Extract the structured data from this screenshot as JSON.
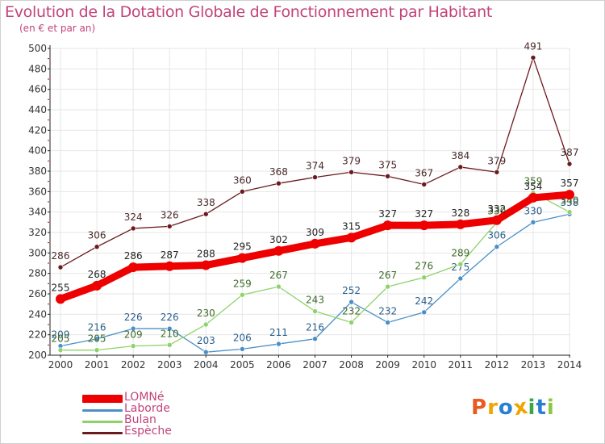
{
  "title": "Evolution de la Dotation Globale de Fonctionnement par Habitant",
  "subtitle": "(en € et par an)",
  "logo": {
    "text": "Proxiti",
    "colors": [
      "#e85a1f",
      "#f0a500",
      "#2a7fd4",
      "#f0a500",
      "#3aa845",
      "#2a7fd4",
      "#8dc63f"
    ]
  },
  "colors": {
    "title": "#c2437a",
    "axis": "#222222",
    "grid": "#e6e6e6",
    "tick_red": "#cc0000"
  },
  "chart_data": {
    "type": "line",
    "title": "Evolution de la Dotation Globale de Fonctionnement par Habitant",
    "subtitle": "(en € et par an)",
    "x": [
      2000,
      2001,
      2002,
      2003,
      2004,
      2005,
      2006,
      2007,
      2008,
      2009,
      2010,
      2011,
      2012,
      2013,
      2014
    ],
    "ylim": [
      200,
      500
    ],
    "yticks": [
      200,
      220,
      240,
      260,
      280,
      300,
      320,
      340,
      360,
      380,
      400,
      420,
      440,
      460,
      480,
      500
    ],
    "grid": true,
    "legend_position": "bottom-left",
    "series": [
      {
        "name": "Espèche",
        "color": "#6b1a1e",
        "label_color": "#4a2a2a",
        "width": 1.3,
        "marker": 3,
        "values": [
          286,
          306,
          324,
          326,
          338,
          360,
          368,
          374,
          379,
          375,
          367,
          384,
          379,
          491,
          387
        ],
        "labels": [
          "286",
          "306",
          "324",
          "326",
          "338",
          "360",
          "368",
          "374",
          "379",
          "375",
          "367",
          "384",
          "379",
          "491",
          "387"
        ]
      },
      {
        "name": "Laborde",
        "color": "#4a90c8",
        "label_color": "#2a5e8c",
        "width": 1.3,
        "marker": 3,
        "values": [
          209,
          216,
          226,
          226,
          203,
          206,
          211,
          216,
          252,
          232,
          242,
          275,
          306,
          330,
          338
        ],
        "labels": [
          "209",
          "216",
          "226",
          "226",
          "203",
          "206",
          "211",
          "216",
          "252",
          "232",
          "242",
          "275",
          "306",
          "330",
          "338"
        ]
      },
      {
        "name": "Bulan",
        "color": "#8ed36a",
        "label_color": "#3e6b2a",
        "width": 1.3,
        "marker": 3,
        "values": [
          205,
          205,
          209,
          210,
          230,
          259,
          267,
          243,
          232,
          267,
          276,
          289,
          330,
          359,
          340
        ],
        "labels": [
          "205",
          "205",
          "209",
          "210",
          "230",
          "259",
          "267",
          "243",
          "232",
          "267",
          "276",
          "289",
          "330",
          "359",
          "340"
        ]
      },
      {
        "name": "LOMNé",
        "color": "#ee0000",
        "label_color": "#222222",
        "width": 9,
        "marker": 6,
        "values": [
          255,
          268,
          286,
          287,
          288,
          295,
          302,
          309,
          315,
          327,
          327,
          328,
          332,
          354,
          357
        ],
        "labels": [
          "255",
          "268",
          "286",
          "287",
          "288",
          "295",
          "302",
          "309",
          "315",
          "327",
          "327",
          "328",
          "332",
          "354",
          "357"
        ]
      }
    ],
    "legend": [
      {
        "name": "LOMNé",
        "color": "#ee0000",
        "text_color": "#c2437a"
      },
      {
        "name": "Laborde",
        "color": "#4a90c8",
        "text_color": "#c2437a"
      },
      {
        "name": "Bulan",
        "color": "#8ed36a",
        "text_color": "#c2437a"
      },
      {
        "name": "Espèche",
        "color": "#6b1a1e",
        "text_color": "#c2437a"
      }
    ]
  }
}
